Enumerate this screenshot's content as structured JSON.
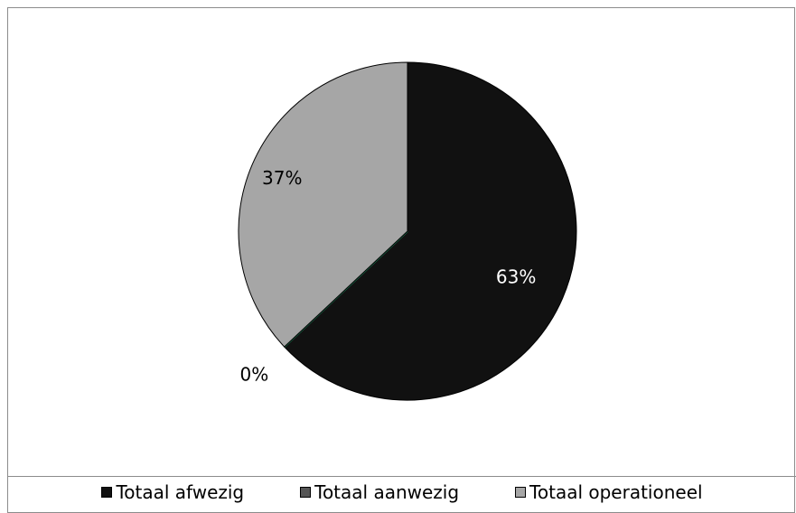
{
  "chart_data": {
    "type": "pie",
    "title": "",
    "slices": [
      {
        "name": "Totaal afwezig",
        "value": 63,
        "label": "63%",
        "color": "#111111"
      },
      {
        "name": "Totaal aanwezig",
        "value": 0,
        "label": "0%",
        "color": "#1a7a52"
      },
      {
        "name": "Totaal operationeel",
        "value": 37,
        "label": "37%",
        "color": "#a6a6a6"
      }
    ],
    "legend_position": "bottom"
  },
  "legend": {
    "items": [
      {
        "label": "Totaal afwezig",
        "color": "#111111"
      },
      {
        "label": "Totaal aanwezig",
        "color": "#555555"
      },
      {
        "label": "Totaal operationeel",
        "color": "#a6a6a6"
      }
    ]
  }
}
